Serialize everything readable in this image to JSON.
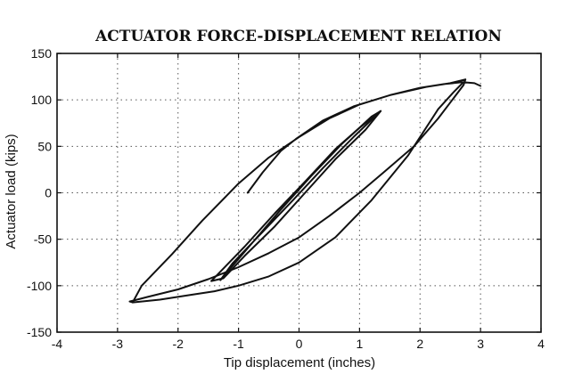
{
  "chart_data": {
    "type": "line",
    "title": "ACTUATOR FORCE-DISPLACEMENT RELATION",
    "xlabel": "Tip displacement (inches)",
    "ylabel": "Actuator load (kips)",
    "xlim": [
      -4,
      4
    ],
    "ylim": [
      -150,
      150
    ],
    "xticks": [
      "-4",
      "-3",
      "-2",
      "-1",
      "0",
      "1",
      "2",
      "3",
      "4"
    ],
    "yticks": [
      "150",
      "100",
      "50",
      "0",
      "-50",
      "-100",
      "-150"
    ],
    "grid": "dotted",
    "line_color": "#111111",
    "series": [
      {
        "values": [
          [
            -0.85,
            0
          ],
          [
            -0.6,
            22
          ],
          [
            -0.3,
            45
          ],
          [
            -0.05,
            58
          ],
          [
            0.4,
            78
          ],
          [
            0.9,
            93
          ],
          [
            1.5,
            105
          ],
          [
            2.1,
            114
          ],
          [
            2.5,
            118
          ],
          [
            2.75,
            122
          ],
          [
            2.72,
            116
          ],
          [
            2.3,
            80
          ],
          [
            1.9,
            50
          ],
          [
            1.4,
            22
          ],
          [
            1.0,
            0
          ],
          [
            0.5,
            -25
          ],
          [
            0.0,
            -48
          ],
          [
            -0.5,
            -65
          ],
          [
            -1.0,
            -80
          ],
          [
            -1.5,
            -93
          ],
          [
            -2.0,
            -104
          ],
          [
            -2.5,
            -112
          ],
          [
            -2.8,
            -117
          ],
          [
            -2.75,
            -118
          ],
          [
            -2.6,
            -100
          ],
          [
            -2.1,
            -66
          ],
          [
            -1.6,
            -30
          ],
          [
            -1.0,
            10
          ],
          [
            -0.5,
            38
          ],
          [
            0.0,
            60
          ],
          [
            0.5,
            80
          ],
          [
            1.0,
            95
          ],
          [
            1.5,
            105
          ],
          [
            2.0,
            113
          ],
          [
            2.4,
            117
          ],
          [
            2.7,
            119
          ],
          [
            2.9,
            118
          ],
          [
            3.0,
            115
          ]
        ]
      },
      {
        "values": [
          [
            -2.75,
            -118
          ],
          [
            -2.3,
            -115
          ],
          [
            -1.8,
            -110
          ],
          [
            -1.4,
            -106
          ],
          [
            -1.0,
            -100
          ],
          [
            -0.5,
            -90
          ],
          [
            0.0,
            -75
          ],
          [
            0.6,
            -48
          ],
          [
            1.2,
            -8
          ],
          [
            1.8,
            40
          ],
          [
            2.3,
            90
          ],
          [
            2.55,
            108
          ],
          [
            2.7,
            118
          ]
        ]
      },
      {
        "values": [
          [
            -1.45,
            -95
          ],
          [
            -0.9,
            -58
          ],
          [
            -0.4,
            -22
          ],
          [
            0.1,
            12
          ],
          [
            0.6,
            47
          ],
          [
            1.0,
            70
          ],
          [
            1.35,
            88
          ],
          [
            1.1,
            68
          ],
          [
            0.6,
            36
          ],
          [
            0.1,
            0
          ],
          [
            -0.4,
            -36
          ],
          [
            -0.9,
            -68
          ],
          [
            -1.25,
            -92
          ],
          [
            -1.45,
            -95
          ]
        ]
      },
      {
        "values": [
          [
            -1.3,
            -94
          ],
          [
            -0.8,
            -56
          ],
          [
            -0.3,
            -18
          ],
          [
            0.2,
            18
          ],
          [
            0.7,
            52
          ],
          [
            1.2,
            82
          ],
          [
            1.35,
            88
          ],
          [
            0.9,
            60
          ],
          [
            0.4,
            27
          ],
          [
            -0.1,
            -8
          ],
          [
            -0.6,
            -42
          ],
          [
            -1.1,
            -76
          ],
          [
            -1.3,
            -94
          ]
        ]
      }
    ]
  }
}
